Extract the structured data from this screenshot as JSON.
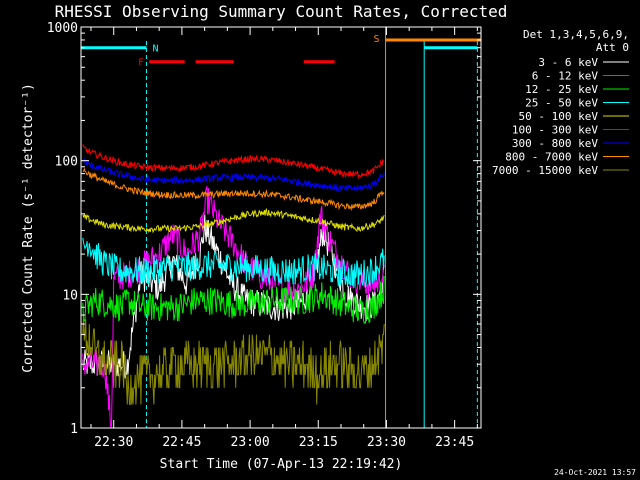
{
  "chart_data": {
    "type": "line",
    "title": "RHESSI Observing Summary Count Rates, Corrected",
    "xlabel": "Start Time (07-Apr-13 22:19:42)",
    "ylabel": "Corrected Count Rate (s⁻¹ detector⁻¹)",
    "y_scale": "log",
    "ylim": [
      1,
      1000
    ],
    "xlim_minutes": [
      22.8,
      110.8
    ],
    "x_ticks": [
      {
        "label": "22:30",
        "minute": 30
      },
      {
        "label": "22:45",
        "minute": 45
      },
      {
        "label": "23:00",
        "minute": 60
      },
      {
        "label": "23:15",
        "minute": 75
      },
      {
        "label": "23:30",
        "minute": 90
      },
      {
        "label": "23:45",
        "minute": 105
      }
    ],
    "y_ticks": [
      {
        "label": "1",
        "value": 1
      },
      {
        "label": "10",
        "value": 10
      },
      {
        "label": "100",
        "value": 100
      },
      {
        "label": "1000",
        "value": 1000
      }
    ],
    "legend_header": [
      "Det 1,3,4,5,6,9,",
      "Att 0"
    ],
    "legend_position": "right",
    "data_start_minute": 23.2,
    "data_end_minute": 89.5,
    "series": [
      {
        "name": "3 - 6 keV",
        "color": "#ffffff",
        "x": [
          33.0,
          36.0,
          40.0,
          43.0,
          46.0,
          49.0,
          50.0,
          53.0,
          56.0,
          59.0,
          62.0,
          65.0,
          68.0,
          71.0,
          74.0,
          76.0,
          78.0,
          81.0,
          84.0,
          86.0,
          88.0,
          89.5
        ],
        "y": [
          3.0,
          14.0,
          11.0,
          18.0,
          12.0,
          20.0,
          32.0,
          20.0,
          12.0,
          9.0,
          8.5,
          8.0,
          8.0,
          8.5,
          12.0,
          30.0,
          20.0,
          10.0,
          8.5,
          8.0,
          9.0,
          14.0
        ]
      },
      {
        "name": "6 - 12 keV",
        "color": "#ff00ff",
        "x": [
          23.2,
          26.0,
          28.0,
          29.5,
          30.0,
          33.0,
          36.0,
          40.0,
          43.0,
          46.0,
          49.0,
          50.5,
          53.0,
          56.0,
          59.0,
          62.0,
          65.0,
          68.0,
          71.0,
          74.0,
          75.5,
          77.0,
          79.0,
          82.0,
          85.0,
          88.0,
          89.5
        ],
        "y": [
          3.0,
          3.0,
          3.0,
          1.0,
          13.0,
          14.0,
          16.0,
          20.0,
          28.0,
          20.0,
          28.0,
          52.0,
          35.0,
          25.0,
          17.0,
          14.0,
          12.0,
          11.0,
          11.0,
          14.0,
          40.0,
          28.0,
          20.0,
          14.0,
          12.0,
          12.0,
          14.0
        ]
      },
      {
        "name": "12 - 25 keV",
        "color": "#00ee00",
        "x": [
          23.2,
          24.0,
          26.0,
          29.0,
          32.0,
          33.0,
          36.0,
          40.0,
          44.0,
          48.0,
          52.0,
          56.0,
          60.0,
          64.0,
          68.0,
          72.0,
          76.0,
          80.0,
          84.0,
          87.0,
          89.5
        ],
        "y": [
          7.0,
          8.0,
          9.0,
          8.5,
          8.0,
          9.0,
          8.0,
          8.0,
          8.0,
          9.0,
          9.0,
          8.5,
          8.5,
          9.0,
          9.0,
          9.0,
          10.0,
          8.5,
          7.5,
          8.0,
          11.0
        ]
      },
      {
        "name": "25 - 50 keV",
        "color": "#00ffff",
        "x": [
          23.2,
          24.5,
          26.0,
          28.0,
          31.0,
          34.0,
          38.0,
          42.0,
          46.0,
          50.0,
          54.0,
          58.0,
          62.0,
          66.0,
          70.0,
          74.0,
          78.0,
          82.0,
          86.0,
          89.5
        ],
        "y": [
          22.0,
          25.0,
          20.0,
          17.0,
          15.0,
          15.0,
          15.0,
          16.0,
          16.0,
          16.5,
          16.5,
          16.0,
          15.5,
          15.0,
          15.0,
          16.0,
          15.0,
          14.0,
          14.5,
          18.0
        ]
      },
      {
        "name": "50 - 100 keV",
        "color": "#dddd00",
        "x": [
          23.2,
          25.0,
          28.0,
          32.0,
          36.0,
          40.0,
          44.0,
          48.0,
          52.0,
          56.0,
          60.0,
          64.0,
          68.0,
          72.0,
          76.0,
          80.0,
          84.0,
          88.0,
          89.5
        ],
        "y": [
          38.0,
          36.0,
          33.0,
          32.0,
          31.0,
          31.0,
          31.0,
          32.0,
          34.0,
          37.0,
          40.0,
          41.0,
          39.0,
          37.0,
          35.0,
          32.0,
          31.0,
          34.0,
          38.0
        ]
      },
      {
        "name": "100 - 300 keV",
        "color": "#ff0000",
        "x": [
          23.2,
          25.0,
          28.0,
          32.0,
          36.0,
          40.0,
          44.0,
          48.0,
          52.0,
          56.0,
          60.0,
          64.0,
          68.0,
          72.0,
          76.0,
          80.0,
          84.0,
          87.0,
          89.5
        ],
        "y": [
          125.0,
          115.0,
          105.0,
          95.0,
          90.0,
          88.0,
          88.0,
          90.0,
          95.0,
          100.0,
          103.0,
          102.0,
          97.0,
          92.0,
          86.0,
          80.0,
          79.0,
          83.0,
          100.0
        ]
      },
      {
        "name": "300 - 800 keV",
        "color": "#0000ff",
        "x": [
          23.2,
          25.0,
          28.0,
          32.0,
          36.0,
          40.0,
          44.0,
          48.0,
          52.0,
          56.0,
          60.0,
          64.0,
          68.0,
          72.0,
          76.0,
          80.0,
          84.0,
          87.0,
          89.5
        ],
        "y": [
          100.0,
          92.0,
          85.0,
          78.0,
          73.0,
          71.0,
          71.0,
          72.0,
          74.0,
          75.0,
          75.0,
          74.0,
          72.0,
          68.0,
          65.0,
          62.0,
          62.0,
          66.0,
          80.0
        ]
      },
      {
        "name": "800 - 7000 keV",
        "color": "#ff8800",
        "x": [
          23.2,
          25.0,
          28.0,
          32.0,
          36.0,
          40.0,
          44.0,
          48.0,
          52.0,
          56.0,
          60.0,
          64.0,
          68.0,
          72.0,
          76.0,
          80.0,
          84.0,
          87.0,
          89.5
        ],
        "y": [
          85.0,
          78.0,
          70.0,
          63.0,
          58.0,
          56.0,
          55.0,
          55.0,
          56.0,
          57.0,
          57.0,
          56.0,
          54.0,
          51.0,
          49.0,
          46.0,
          45.0,
          48.0,
          60.0
        ]
      },
      {
        "name": "7000 - 15000 keV",
        "color": "#888800",
        "x": [
          23.2,
          25.0,
          26.0,
          29.0,
          32.0,
          33.0,
          36.0,
          40.0,
          44.0,
          48.0,
          52.0,
          56.0,
          60.0,
          64.0,
          68.0,
          72.0,
          75.0,
          78.0,
          81.0,
          84.0,
          87.0,
          89.5
        ],
        "y": [
          5.0,
          4.5,
          3.5,
          3.0,
          3.0,
          2.0,
          2.5,
          2.5,
          3.0,
          3.0,
          3.0,
          3.0,
          3.5,
          3.5,
          3.0,
          3.0,
          2.5,
          3.0,
          3.0,
          2.5,
          3.0,
          4.5
        ]
      }
    ],
    "annotations": {
      "N": {
        "letter": "N",
        "color": "#00ffff"
      },
      "F": {
        "letter": "F",
        "color": "#ff0000"
      },
      "S": {
        "letter": "S",
        "color": "#ff8800"
      }
    },
    "intervals": {
      "night": {
        "color": "#00ffff",
        "level": 700,
        "spans": [
          [
            22.8,
            37.2
          ],
          [
            98.3,
            110.0
          ]
        ],
        "edges": [
          37.2,
          98.3,
          110.0
        ],
        "start_edge": 22.8
      },
      "flare": {
        "color": "#ff0000",
        "level": 550,
        "spans": [
          [
            37.8,
            45.6
          ],
          [
            48.0,
            56.4
          ],
          [
            71.8,
            78.6
          ]
        ]
      },
      "saa": {
        "color": "#ff8800",
        "level": 800,
        "spans": [
          [
            89.8,
            110.8
          ]
        ],
        "edges": [
          89.8
        ]
      }
    }
  },
  "footer": {
    "timestamp": "24-Oct-2021 13:57"
  }
}
